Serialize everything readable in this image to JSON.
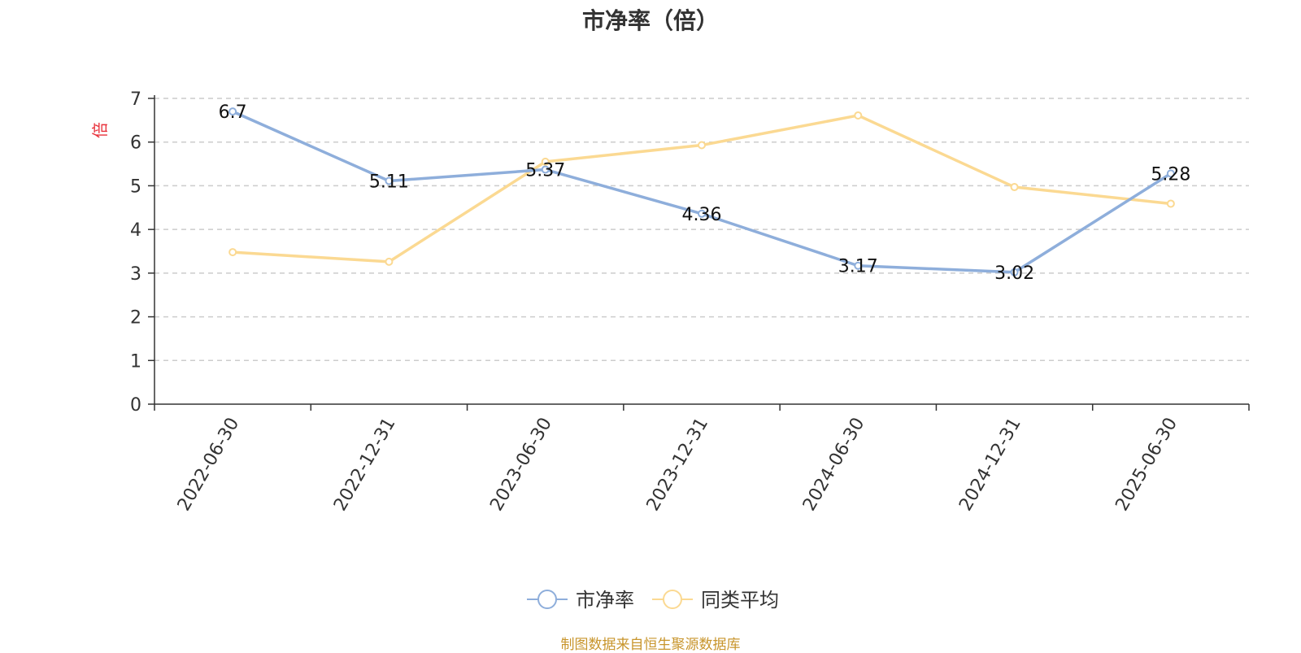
{
  "title": "市净率（倍）",
  "source_note": "制图数据来自恒生聚源数据库",
  "chart_data": {
    "type": "line",
    "title": "市净率（倍）",
    "ylabel": "倍",
    "xlabel": "",
    "ylim": [
      0,
      7
    ],
    "yticks": [
      "0",
      "1",
      "2",
      "3",
      "4",
      "5",
      "6",
      "7"
    ],
    "grid": "horizontal dashed",
    "legend_position": "bottom-center",
    "categories": [
      "2022-06-30",
      "2022-12-31",
      "2023-06-30",
      "2023-12-31",
      "2024-06-30",
      "2024-12-31",
      "2025-06-30"
    ],
    "series": [
      {
        "name": "市净率",
        "color": "#8eaedb",
        "values": [
          6.7,
          5.11,
          5.37,
          4.36,
          3.17,
          3.02,
          5.28
        ],
        "labels": [
          "6.7",
          "5.11",
          "5.37",
          "4.36",
          "3.17",
          "3.02",
          "5.28"
        ],
        "show_labels": true
      },
      {
        "name": "同类平均",
        "color": "#fbd992",
        "values": [
          3.48,
          3.26,
          5.55,
          5.93,
          6.61,
          4.97,
          4.59
        ],
        "show_labels": false
      }
    ]
  },
  "colors": {
    "axis": "#333333",
    "grid": "#cccccc",
    "ylabel": "#e8313b",
    "source_note": "#c8952c"
  }
}
